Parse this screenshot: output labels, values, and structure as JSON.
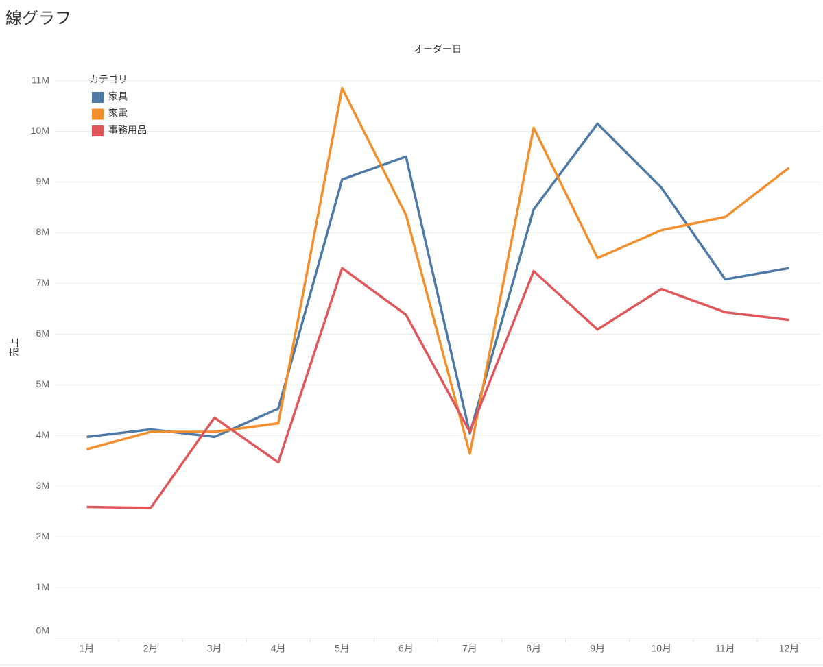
{
  "chart_data": {
    "type": "line",
    "title": "線グラフ",
    "x_label": "オーダー日",
    "y_label": "売上",
    "legend_title": "カテゴリ",
    "legend_position": "upper-left",
    "grid": true,
    "categories": [
      "1月",
      "2月",
      "3月",
      "4月",
      "5月",
      "6月",
      "7月",
      "8月",
      "9月",
      "10月",
      "11月",
      "12月"
    ],
    "series": [
      {
        "name": "家具",
        "color": "#4e79a7",
        "values": [
          3970000,
          4120000,
          3970000,
          4530000,
          9050000,
          9500000,
          4040000,
          8460000,
          10150000,
          8890000,
          7080000,
          7300000
        ]
      },
      {
        "name": "家電",
        "color": "#f28e2b",
        "values": [
          3730000,
          4070000,
          4070000,
          4240000,
          10850000,
          8350000,
          3640000,
          10070000,
          7500000,
          8050000,
          8310000,
          9280000
        ]
      },
      {
        "name": "事務用品",
        "color": "#e15759",
        "values": [
          2590000,
          2570000,
          4350000,
          3470000,
          7300000,
          6380000,
          4070000,
          7240000,
          6090000,
          6890000,
          6430000,
          6280000
        ]
      }
    ],
    "ylim": [
      0,
      11400000
    ],
    "yticks": [
      {
        "value": 0,
        "label": "0M"
      },
      {
        "value": 1000000,
        "label": "1M"
      },
      {
        "value": 2000000,
        "label": "2M"
      },
      {
        "value": 3000000,
        "label": "3M"
      },
      {
        "value": 4000000,
        "label": "4M"
      },
      {
        "value": 5000000,
        "label": "5M"
      },
      {
        "value": 6000000,
        "label": "6M"
      },
      {
        "value": 7000000,
        "label": "7M"
      },
      {
        "value": 8000000,
        "label": "8M"
      },
      {
        "value": 9000000,
        "label": "9M"
      },
      {
        "value": 10000000,
        "label": "10M"
      },
      {
        "value": 11000000,
        "label": "11M"
      }
    ]
  }
}
